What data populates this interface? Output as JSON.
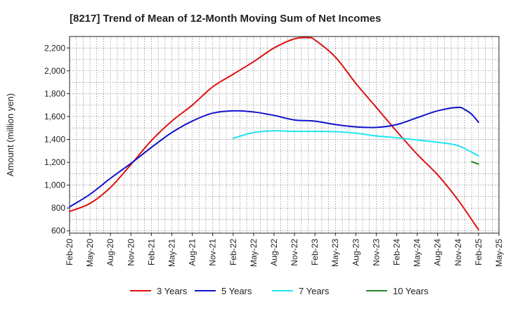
{
  "chart_data": {
    "type": "line",
    "title": "[8217]  Trend of Mean of 12-Month Moving Sum of Net Incomes",
    "ylabel": "Amount (million yen)",
    "xlabel": "",
    "ylim": [
      580,
      2300
    ],
    "yticks": [
      600,
      800,
      1000,
      1200,
      1400,
      1600,
      1800,
      2000,
      2200
    ],
    "ytick_labels": [
      "600",
      "800",
      "1,000",
      "1,200",
      "1,400",
      "1,600",
      "1,800",
      "2,000",
      "2,200"
    ],
    "x_start": "Feb-20",
    "x_end": "May-25",
    "xtick_labels": [
      "Feb-20",
      "May-20",
      "Aug-20",
      "Nov-20",
      "Feb-21",
      "May-21",
      "Aug-21",
      "Nov-21",
      "Feb-22",
      "May-22",
      "Aug-22",
      "Nov-22",
      "Feb-23",
      "May-23",
      "Aug-23",
      "Nov-23",
      "Feb-24",
      "May-24",
      "Aug-24",
      "Nov-24",
      "Feb-25",
      "May-25"
    ],
    "grid": true,
    "legend_position": "bottom",
    "series": [
      {
        "name": "3 Years",
        "color": "#dd1111",
        "x": [
          "Feb-20",
          "May-20",
          "Aug-20",
          "Nov-20",
          "Feb-21",
          "May-21",
          "Aug-21",
          "Nov-21",
          "Feb-22",
          "May-22",
          "Aug-22",
          "Nov-22",
          "Jan-23",
          "Feb-23",
          "May-23",
          "Aug-23",
          "Nov-23",
          "Feb-24",
          "May-24",
          "Aug-24",
          "Nov-24",
          "Feb-25"
        ],
        "values": [
          770,
          840,
          980,
          1180,
          1390,
          1560,
          1700,
          1860,
          1970,
          2080,
          2200,
          2280,
          2290,
          2270,
          2120,
          1890,
          1680,
          1470,
          1270,
          1090,
          870,
          610
        ]
      },
      {
        "name": "5 Years",
        "color": "#1111cc",
        "x": [
          "Feb-20",
          "May-20",
          "Aug-20",
          "Nov-20",
          "Feb-21",
          "May-21",
          "Aug-21",
          "Nov-21",
          "Feb-22",
          "May-22",
          "Aug-22",
          "Nov-22",
          "Feb-23",
          "May-23",
          "Aug-23",
          "Nov-23",
          "Feb-24",
          "May-24",
          "Aug-24",
          "Nov-24",
          "Dec-24",
          "Jan-25",
          "Feb-25"
        ],
        "values": [
          810,
          920,
          1060,
          1190,
          1330,
          1460,
          1560,
          1630,
          1650,
          1640,
          1610,
          1570,
          1560,
          1530,
          1510,
          1505,
          1530,
          1590,
          1650,
          1680,
          1660,
          1620,
          1550
        ]
      },
      {
        "name": "7 Years",
        "color": "#22e5f0",
        "x": [
          "Feb-22",
          "May-22",
          "Aug-22",
          "Nov-22",
          "Feb-23",
          "May-23",
          "Aug-23",
          "Nov-23",
          "Feb-24",
          "May-24",
          "Aug-24",
          "Nov-24",
          "Feb-25"
        ],
        "values": [
          1410,
          1460,
          1475,
          1470,
          1470,
          1468,
          1455,
          1430,
          1415,
          1395,
          1375,
          1345,
          1255
        ]
      },
      {
        "name": "10 Years",
        "color": "#228822",
        "x": [
          "Jan-25",
          "Feb-25"
        ],
        "values": [
          1205,
          1185
        ]
      }
    ]
  }
}
